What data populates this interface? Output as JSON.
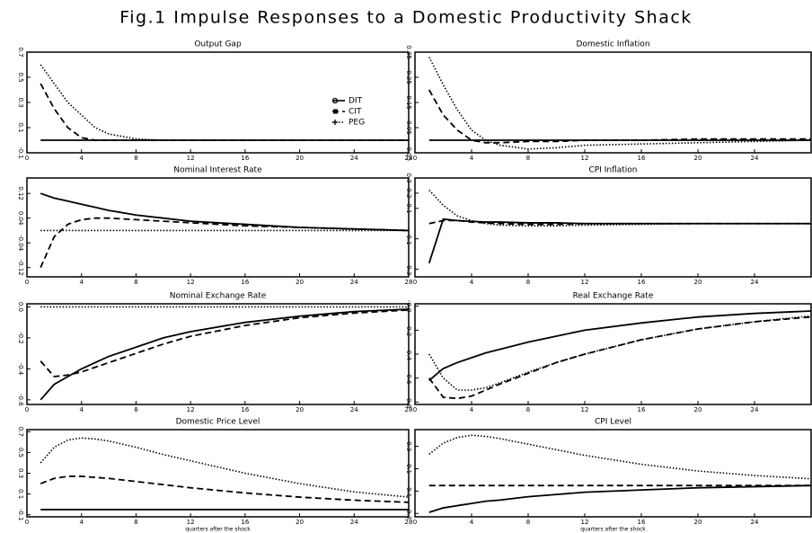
{
  "title": "Fig.1 Impulse Responses to a Domestic Productivity Shack",
  "chart_data": [
    {
      "type": "line",
      "title": "Output Gap",
      "x": [
        1,
        2,
        3,
        4,
        5,
        6,
        8,
        10,
        12,
        16,
        20,
        24,
        28
      ],
      "xlim": [
        0,
        28
      ],
      "xticks": [
        0,
        4,
        8,
        12,
        16,
        20,
        24,
        28
      ],
      "ylim": [
        -0.1,
        0.7
      ],
      "yticks": [
        -0.1,
        0.1,
        0.3,
        0.5,
        0.7
      ],
      "legend": "center right",
      "series": [
        {
          "name": "DIT",
          "color": "#000000",
          "style": "solid",
          "marker": "circle",
          "values": [
            0,
            0,
            0,
            0,
            0,
            0,
            0,
            0,
            0,
            0,
            0,
            0,
            0
          ]
        },
        {
          "name": "CIT",
          "color": "#000000",
          "style": "dashed",
          "marker": "square",
          "values": [
            0.45,
            0.25,
            0.1,
            0.02,
            0,
            0,
            0,
            0,
            0,
            0,
            0,
            0,
            0
          ]
        },
        {
          "name": "PEG",
          "color": "#000000",
          "style": "dotted",
          "marker": "plus",
          "values": [
            0.6,
            0.45,
            0.3,
            0.2,
            0.1,
            0.05,
            0.01,
            0,
            0,
            0,
            0,
            0,
            0
          ]
        }
      ]
    },
    {
      "type": "line",
      "title": "Domestic Inflation",
      "x": [
        1,
        2,
        3,
        4,
        5,
        6,
        8,
        10,
        12,
        16,
        20,
        24,
        28
      ],
      "xlim": [
        0,
        28
      ],
      "xticks": [
        0,
        4,
        8,
        12,
        16,
        20,
        24
      ],
      "ylim": [
        -0.05,
        0.35
      ],
      "yticks": [
        -0.05,
        0.05,
        0.15,
        0.25,
        0.35
      ],
      "series": [
        {
          "color": "#000000",
          "style": "solid",
          "values": [
            0,
            0,
            0,
            0,
            0,
            0,
            0,
            0,
            0,
            0,
            0,
            0,
            0
          ]
        },
        {
          "color": "#000000",
          "style": "dashed",
          "values": [
            0.2,
            0.1,
            0.04,
            0,
            -0.01,
            -0.01,
            -0.005,
            -0.005,
            0,
            0,
            0.005,
            0.005,
            0.005
          ]
        },
        {
          "color": "#000000",
          "style": "dotted",
          "values": [
            0.33,
            0.22,
            0.12,
            0.04,
            0,
            -0.02,
            -0.035,
            -0.03,
            -0.02,
            -0.015,
            -0.01,
            -0.005,
            0
          ]
        }
      ]
    },
    {
      "type": "line",
      "title": "Nominal Interest Rate",
      "x": [
        1,
        2,
        3,
        4,
        5,
        6,
        8,
        10,
        12,
        16,
        20,
        24,
        28
      ],
      "xlim": [
        0,
        28
      ],
      "xticks": [
        0,
        4,
        8,
        12,
        16,
        20,
        24,
        28
      ],
      "ylim": [
        -0.15,
        0.17
      ],
      "yticks": [
        -0.12,
        -0.04,
        0.04,
        0.12
      ],
      "series": [
        {
          "color": "#000000",
          "style": "solid",
          "values": [
            0.12,
            0.105,
            0.095,
            0.085,
            0.075,
            0.065,
            0.05,
            0.04,
            0.03,
            0.02,
            0.01,
            0.005,
            0
          ]
        },
        {
          "color": "#000000",
          "style": "dashed",
          "values": [
            -0.12,
            -0.02,
            0.02,
            0.035,
            0.04,
            0.04,
            0.035,
            0.03,
            0.025,
            0.015,
            0.01,
            0.005,
            0
          ]
        },
        {
          "color": "#000000",
          "style": "dotted",
          "values": [
            0,
            0,
            0,
            0,
            0,
            0,
            0,
            0,
            0,
            0,
            0,
            0,
            0
          ]
        }
      ]
    },
    {
      "type": "line",
      "title": "CPI Inflation",
      "x": [
        1,
        2,
        3,
        4,
        5,
        6,
        8,
        10,
        12,
        16,
        20,
        24,
        28
      ],
      "xlim": [
        0,
        28
      ],
      "xticks": [
        0,
        4,
        8,
        12,
        16,
        20,
        24
      ],
      "ylim": [
        -0.35,
        0.3
      ],
      "yticks": [
        -0.3,
        -0.1,
        0.1,
        0.2,
        0.3
      ],
      "series": [
        {
          "color": "#000000",
          "style": "solid",
          "values": [
            -0.26,
            0.03,
            0.02,
            0.015,
            0.01,
            0.01,
            0.005,
            0.005,
            0,
            0,
            0,
            0,
            0
          ]
        },
        {
          "color": "#000000",
          "style": "dashed",
          "values": [
            0,
            0.02,
            0.02,
            0.01,
            0.005,
            0,
            -0.005,
            -0.005,
            0,
            0,
            0,
            0,
            0
          ]
        },
        {
          "color": "#000000",
          "style": "dotted",
          "values": [
            0.22,
            0.12,
            0.05,
            0.02,
            0,
            -0.01,
            -0.015,
            -0.015,
            -0.01,
            -0.005,
            0,
            0,
            0
          ]
        }
      ]
    },
    {
      "type": "line",
      "title": "Nominal Exchange Rate",
      "x": [
        1,
        2,
        3,
        4,
        5,
        6,
        8,
        10,
        12,
        16,
        20,
        24,
        28
      ],
      "xlim": [
        0,
        28
      ],
      "xticks": [
        0,
        4,
        8,
        12,
        16,
        20,
        24,
        28
      ],
      "ylim": [
        -0.63,
        0.02
      ],
      "yticks": [
        -0.6,
        -0.4,
        -0.2,
        {
          "value": 0,
          "label": "0.0"
        }
      ],
      "series": [
        {
          "color": "#000000",
          "style": "solid",
          "values": [
            -0.6,
            -0.5,
            -0.45,
            -0.4,
            -0.36,
            -0.32,
            -0.26,
            -0.2,
            -0.16,
            -0.1,
            -0.06,
            -0.03,
            -0.015
          ]
        },
        {
          "color": "#000000",
          "style": "dashed",
          "values": [
            -0.35,
            -0.45,
            -0.44,
            -0.42,
            -0.39,
            -0.36,
            -0.3,
            -0.24,
            -0.19,
            -0.12,
            -0.07,
            -0.04,
            -0.02
          ]
        },
        {
          "color": "#000000",
          "style": "dotted",
          "values": [
            0,
            0,
            0,
            0,
            0,
            0,
            0,
            0,
            0,
            0,
            0,
            0,
            0
          ]
        }
      ]
    },
    {
      "type": "line",
      "title": "Real Exchange Rate",
      "x": [
        1,
        2,
        3,
        4,
        5,
        6,
        8,
        10,
        12,
        16,
        20,
        24,
        28
      ],
      "xlim": [
        0,
        28
      ],
      "xticks": [
        0,
        4,
        8,
        12,
        16,
        20,
        24
      ],
      "ylim": [
        -0.82,
        0.02
      ],
      "yticks": [
        -0.8,
        -0.6,
        -0.4,
        -0.2,
        {
          "value": 0,
          "label": "-0.0"
        }
      ],
      "series": [
        {
          "color": "#000000",
          "style": "solid",
          "values": [
            -0.62,
            -0.52,
            -0.47,
            -0.43,
            -0.39,
            -0.36,
            -0.3,
            -0.25,
            -0.2,
            -0.14,
            -0.09,
            -0.06,
            -0.04
          ]
        },
        {
          "color": "#000000",
          "style": "dashed",
          "values": [
            -0.6,
            -0.76,
            -0.77,
            -0.75,
            -0.7,
            -0.65,
            -0.56,
            -0.47,
            -0.4,
            -0.28,
            -0.19,
            -0.13,
            -0.09
          ]
        },
        {
          "color": "#000000",
          "style": "dotted",
          "values": [
            -0.4,
            -0.6,
            -0.7,
            -0.7,
            -0.68,
            -0.64,
            -0.55,
            -0.47,
            -0.4,
            -0.28,
            -0.19,
            -0.13,
            -0.08
          ]
        }
      ]
    },
    {
      "type": "line",
      "title": "Domestic Price Level",
      "xlabel": "quarters after the shock",
      "x": [
        1,
        2,
        3,
        4,
        5,
        6,
        8,
        10,
        12,
        16,
        20,
        24,
        28
      ],
      "xlim": [
        0,
        28
      ],
      "xticks": [
        0,
        4,
        8,
        12,
        16,
        20,
        24,
        28
      ],
      "ylim": [
        -0.12,
        0.72
      ],
      "yticks": [
        -0.1,
        0.1,
        0.3,
        0.5,
        0.7
      ],
      "series": [
        {
          "color": "#000000",
          "style": "solid",
          "values": [
            -0.05,
            -0.05,
            -0.05,
            -0.05,
            -0.05,
            -0.05,
            -0.05,
            -0.05,
            -0.05,
            -0.05,
            -0.05,
            -0.05,
            -0.05
          ]
        },
        {
          "color": "#000000",
          "style": "dashed",
          "values": [
            0.2,
            0.25,
            0.27,
            0.27,
            0.26,
            0.25,
            0.22,
            0.19,
            0.16,
            0.11,
            0.07,
            0.04,
            0.02
          ]
        },
        {
          "color": "#000000",
          "style": "dotted",
          "values": [
            0.4,
            0.55,
            0.62,
            0.64,
            0.63,
            0.61,
            0.55,
            0.48,
            0.42,
            0.3,
            0.2,
            0.12,
            0.07
          ]
        }
      ]
    },
    {
      "type": "line",
      "title": "CPI Level",
      "xlabel": "quarters after the shock",
      "x": [
        1,
        2,
        3,
        4,
        5,
        6,
        8,
        10,
        12,
        16,
        20,
        24,
        28
      ],
      "xlim": [
        0,
        28
      ],
      "xticks": [
        0,
        4,
        8,
        12,
        16,
        20,
        24
      ],
      "ylim": [
        -0.33,
        0.45
      ],
      "yticks": [
        -0.3,
        -0.1,
        0.1,
        0.3
      ],
      "series": [
        {
          "color": "#000000",
          "style": "solid",
          "values": [
            -0.29,
            -0.25,
            -0.23,
            -0.21,
            -0.19,
            -0.18,
            -0.15,
            -0.13,
            -0.11,
            -0.09,
            -0.07,
            -0.06,
            -0.05
          ]
        },
        {
          "color": "#000000",
          "style": "dashed",
          "values": [
            -0.05,
            -0.05,
            -0.05,
            -0.05,
            -0.05,
            -0.05,
            -0.05,
            -0.05,
            -0.05,
            -0.05,
            -0.05,
            -0.05,
            -0.05
          ]
        },
        {
          "color": "#000000",
          "style": "dotted",
          "values": [
            0.23,
            0.33,
            0.38,
            0.4,
            0.39,
            0.37,
            0.32,
            0.27,
            0.22,
            0.14,
            0.08,
            0.04,
            0.01
          ]
        }
      ]
    }
  ]
}
